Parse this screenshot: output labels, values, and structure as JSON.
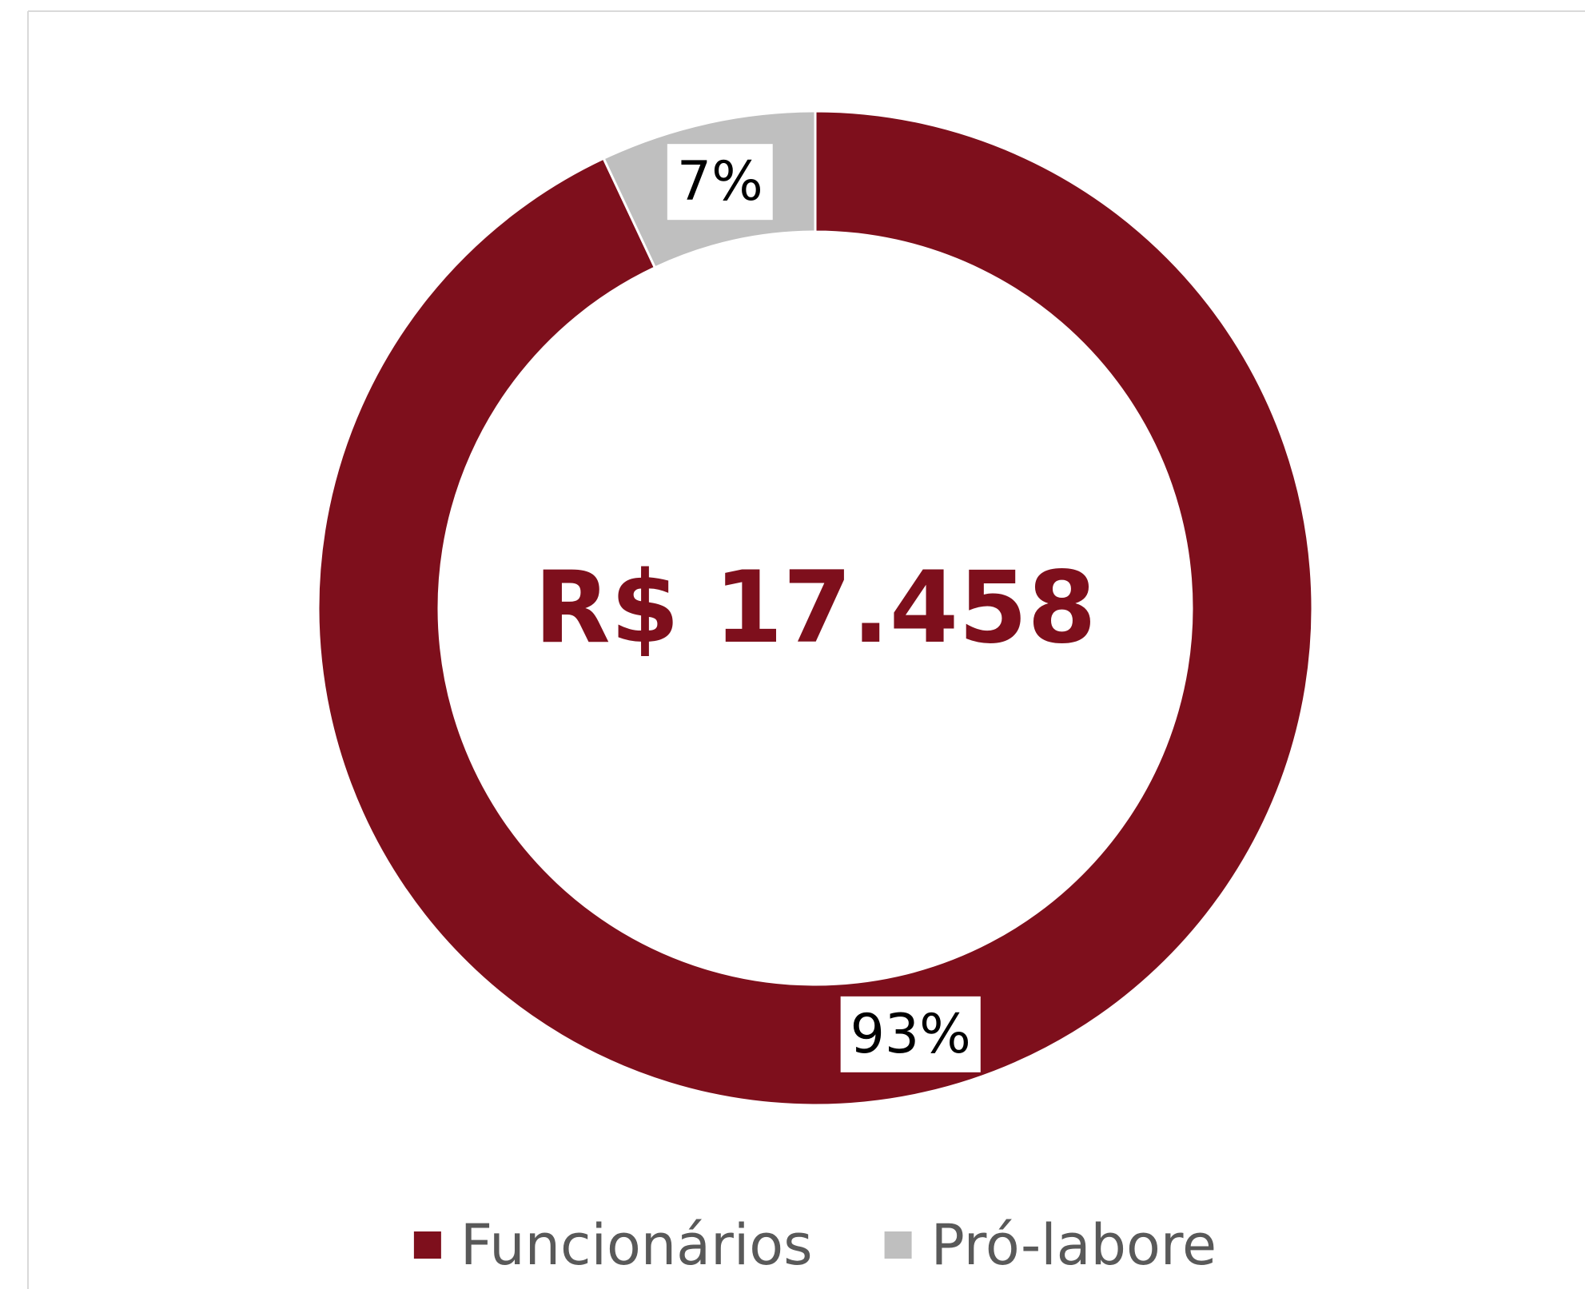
{
  "chart_data": {
    "type": "donut",
    "categories": [
      "Funcionários",
      "Pró-labore"
    ],
    "values": [
      93,
      7
    ],
    "value_labels": [
      "93%",
      "7%"
    ],
    "colors": [
      "#7e0f1c",
      "#bfbfbf"
    ],
    "center_label": "R$ 17.458",
    "legend": "bottom"
  }
}
